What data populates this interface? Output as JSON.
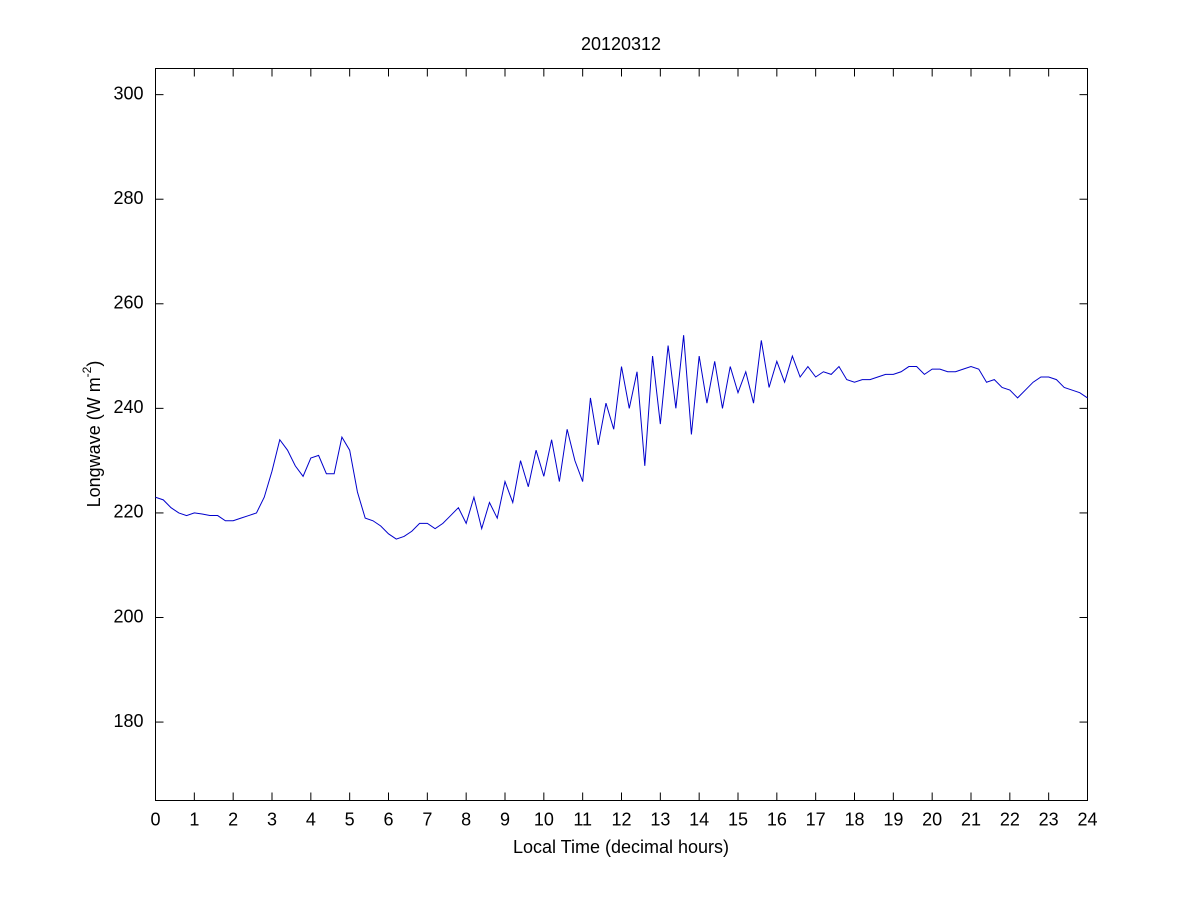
{
  "chart_data": {
    "type": "line",
    "title": "20120312",
    "x_label": "Local Time (decimal hours)",
    "y_label": [
      "Longwave (W m",
      "-2",
      ")"
    ],
    "x": [
      0,
      0.2,
      0.4,
      0.6,
      0.8,
      1,
      1.2,
      1.4,
      1.6,
      1.8,
      2,
      2.2,
      2.4,
      2.6,
      2.8,
      3,
      3.2,
      3.4,
      3.6,
      3.8,
      4,
      4.2,
      4.4,
      4.6,
      4.8,
      5,
      5.2,
      5.4,
      5.6,
      5.8,
      6,
      6.2,
      6.4,
      6.6,
      6.8,
      7,
      7.2,
      7.4,
      7.6,
      7.8,
      8,
      8.2,
      8.4,
      8.6,
      8.8,
      9,
      9.2,
      9.4,
      9.6,
      9.8,
      10,
      10.2,
      10.4,
      10.6,
      10.8,
      11,
      11.2,
      11.4,
      11.6,
      11.8,
      12,
      12.2,
      12.4,
      12.6,
      12.8,
      13,
      13.2,
      13.4,
      13.6,
      13.8,
      14,
      14.2,
      14.4,
      14.6,
      14.8,
      15,
      15.2,
      15.4,
      15.6,
      15.8,
      16,
      16.2,
      16.4,
      16.6,
      16.8,
      17,
      17.2,
      17.4,
      17.6,
      17.8,
      18,
      18.2,
      18.4,
      18.6,
      18.8,
      19,
      19.2,
      19.4,
      19.6,
      19.8,
      20,
      20.2,
      20.4,
      20.6,
      20.8,
      21,
      21.2,
      21.4,
      21.6,
      21.8,
      22,
      22.2,
      22.4,
      22.6,
      22.8,
      23,
      23.2,
      23.4,
      23.6,
      23.8,
      24
    ],
    "series": [
      {
        "color": "#0000cc",
        "values": [
          223,
          222.5,
          221,
          220,
          219.5,
          220,
          219.8,
          219.5,
          219.5,
          218.5,
          218.5,
          219,
          219.5,
          220,
          223,
          228,
          234,
          232,
          229,
          227,
          230.5,
          231,
          227.5,
          227.5,
          234.5,
          232,
          224,
          219,
          218.5,
          217.5,
          216,
          215,
          215.5,
          216.5,
          218,
          218,
          217,
          218,
          219.5,
          221,
          218,
          223,
          217,
          222,
          219,
          226,
          222,
          230,
          225,
          232,
          227,
          234,
          226,
          236,
          230,
          226,
          242,
          233,
          241,
          236,
          248,
          240,
          247,
          229,
          250,
          237,
          252,
          240,
          254,
          235,
          250,
          241,
          249,
          240,
          248,
          243,
          247,
          241,
          253,
          244,
          249,
          245,
          250,
          246,
          248,
          246,
          247,
          246.5,
          248,
          245.5,
          245,
          245.5,
          245.5,
          246,
          246.5,
          246.5,
          247,
          248,
          248,
          246.5,
          247.5,
          247.5,
          247,
          247,
          247.5,
          248,
          247.5,
          245,
          245.5,
          244,
          243.5,
          242,
          243.5,
          245,
          246,
          246,
          245.5,
          244,
          243.5,
          243,
          242
        ]
      }
    ],
    "xlim": [
      0,
      24
    ],
    "ylim": [
      165,
      305
    ],
    "xticks": [
      0,
      1,
      2,
      3,
      4,
      5,
      6,
      7,
      8,
      9,
      10,
      11,
      12,
      13,
      14,
      15,
      16,
      17,
      18,
      19,
      20,
      21,
      22,
      23,
      24
    ],
    "yticks": [
      180,
      200,
      220,
      240,
      260,
      280,
      300
    ]
  }
}
